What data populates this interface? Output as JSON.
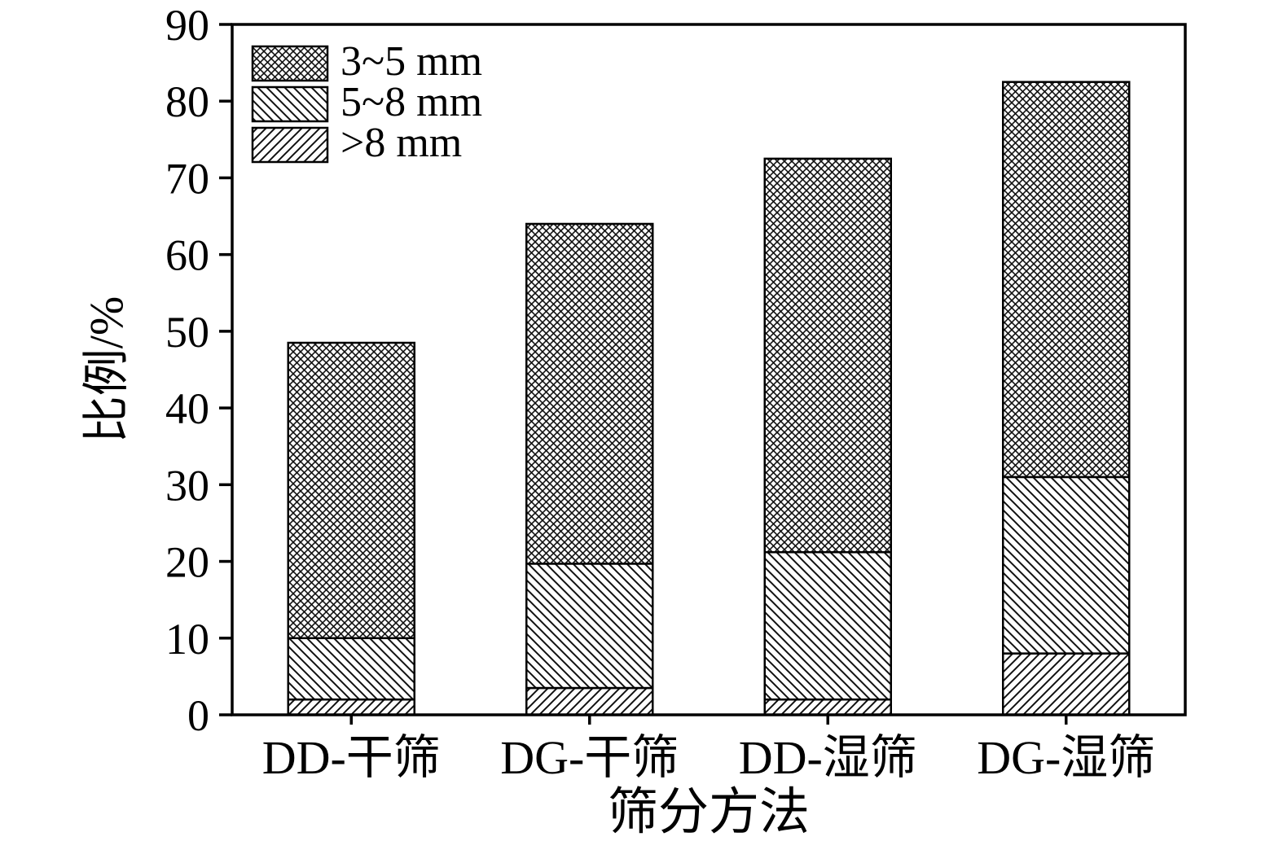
{
  "chart_data": {
    "type": "bar",
    "stacked": true,
    "title": "",
    "xlabel": "筛分方法",
    "ylabel": "比例/%",
    "categories": [
      "DD-干筛",
      "DG-干筛",
      "DD-湿筛",
      "DG-湿筛"
    ],
    "series": [
      {
        "name": ">8 mm",
        "pattern": "forward-hatch",
        "values": [
          2.0,
          3.5,
          2.0,
          8.0
        ]
      },
      {
        "name": "5~8 mm",
        "pattern": "back-hatch",
        "values": [
          8.0,
          16.2,
          19.2,
          23.0
        ]
      },
      {
        "name": "3~5 mm",
        "pattern": "cross-hatch",
        "values": [
          38.5,
          44.3,
          51.3,
          51.5
        ]
      }
    ],
    "stack_totals": [
      48.5,
      64.0,
      72.5,
      82.5
    ],
    "legend_order": [
      "3~5 mm",
      "5~8 mm",
      ">8 mm"
    ],
    "legend_position": "top-left",
    "ylim": [
      0,
      90
    ],
    "ytick_step": 10,
    "yticks": [
      "0",
      "10",
      "20",
      "30",
      "40",
      "50",
      "60",
      "70",
      "80",
      "90"
    ],
    "grid": false,
    "colors": {
      "ink": "#000000",
      "background": "#ffffff"
    }
  }
}
